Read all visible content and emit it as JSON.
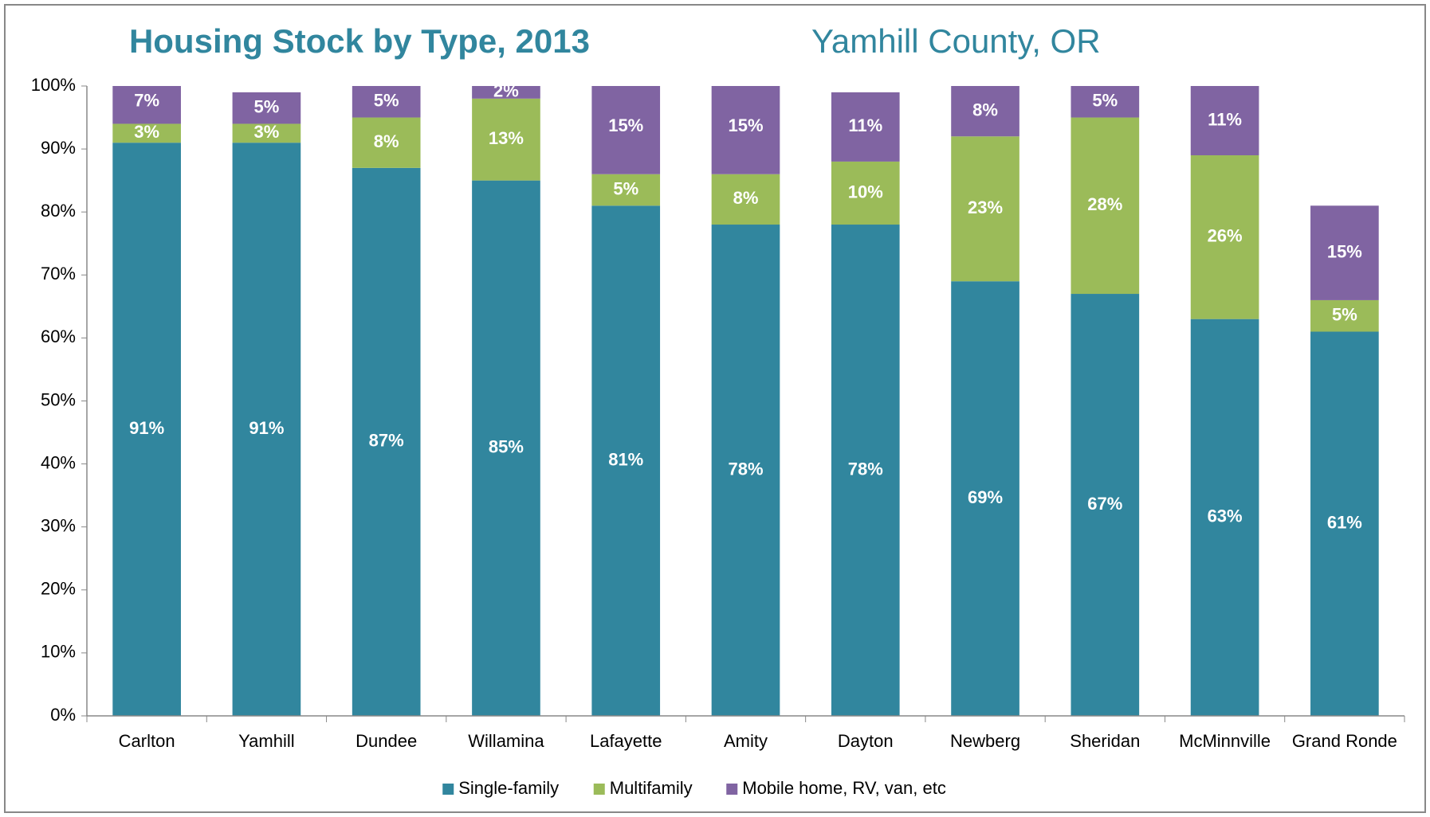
{
  "chart_data": {
    "type": "stacked_bar",
    "title": "Housing Stock by Type, 2013",
    "subtitle": "Yamhill County, OR",
    "categories": [
      "Carlton",
      "Yamhill",
      "Dundee",
      "Willamina",
      "Lafayette",
      "Amity",
      "Dayton",
      "Newberg",
      "Sheridan",
      "McMinnville",
      "Grand Ronde"
    ],
    "series": [
      {
        "name": "Single-family",
        "color": "#31869e",
        "values": [
          91,
          91,
          87,
          85,
          81,
          78,
          78,
          69,
          67,
          63,
          61
        ],
        "value_labels": [
          "91%",
          "91%",
          "87%",
          "85%",
          "81%",
          "78%",
          "78%",
          "69%",
          "67%",
          "63%",
          "61%"
        ]
      },
      {
        "name": "Multifamily",
        "color": "#9bbb59",
        "values": [
          3,
          3,
          8,
          13,
          5,
          8,
          10,
          23,
          28,
          26,
          5
        ],
        "value_labels": [
          "3%",
          "3%",
          "8%",
          "13%",
          "5%",
          "8%",
          "10%",
          "23%",
          "28%",
          "26%",
          "5%"
        ]
      },
      {
        "name": "Mobile home, RV, van, etc",
        "color": "#8064a2",
        "values": [
          7,
          5,
          5,
          2,
          15,
          15,
          11,
          8,
          5,
          11,
          15
        ],
        "value_labels": [
          "7%",
          "5%",
          "5%",
          "2%",
          "15%",
          "15%",
          "11%",
          "8%",
          "5%",
          "11%",
          "15%"
        ]
      }
    ],
    "ylim": [
      0,
      100
    ],
    "yticks": [
      {
        "value": 0,
        "label": "0%"
      },
      {
        "value": 10,
        "label": "10%"
      },
      {
        "value": 20,
        "label": "20%"
      },
      {
        "value": 30,
        "label": "30%"
      },
      {
        "value": 40,
        "label": "40%"
      },
      {
        "value": 50,
        "label": "50%"
      },
      {
        "value": 60,
        "label": "60%"
      },
      {
        "value": 70,
        "label": "70%"
      },
      {
        "value": 80,
        "label": "80%"
      },
      {
        "value": 90,
        "label": "90%"
      },
      {
        "value": 100,
        "label": "100%"
      }
    ],
    "grid": false,
    "legend": "bottom"
  }
}
